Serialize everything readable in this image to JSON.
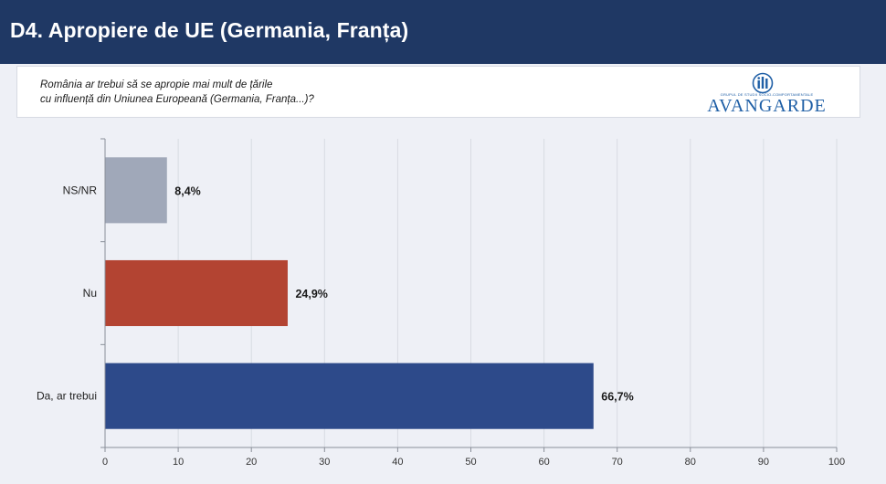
{
  "header": {
    "title": "D4. Apropiere de UE (Germania, Franța)"
  },
  "question": {
    "line1": "România ar trebui să se apropie mai mult de țările",
    "line2": "cu influență din Uniunea Europeană (Germania, Franța...)?"
  },
  "logo": {
    "wordmark": "AVANGARDE",
    "tagline": "GRUPUL DE STUDII SOCIO-COMPORTAMENTALE",
    "brand_color": "#1f5fa6"
  },
  "chart_data": {
    "type": "bar",
    "orientation": "horizontal",
    "categories": [
      "NS/NR",
      "Nu",
      "Da, ar trebui"
    ],
    "values": [
      8.4,
      24.9,
      66.7
    ],
    "value_labels": [
      "8,4%",
      "24,9%",
      "66,7%"
    ],
    "colors": [
      "#a0a8b9",
      "#b34432",
      "#2d4a8a"
    ],
    "xlim": [
      0,
      100
    ],
    "xticks": [
      0,
      10,
      20,
      30,
      40,
      50,
      60,
      70,
      80,
      90,
      100
    ],
    "grid": true,
    "legend": "none"
  }
}
